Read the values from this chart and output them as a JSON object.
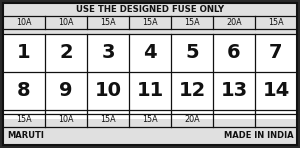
{
  "title": "USE THE DESIGNED FUSE ONLY",
  "top_fuses": [
    "10A",
    "10A",
    "15A",
    "15A",
    "15A",
    "20A",
    "15A"
  ],
  "row1_nums": [
    "1",
    "2",
    "3",
    "4",
    "5",
    "6",
    "7"
  ],
  "row2_nums": [
    "8",
    "9",
    "10",
    "11",
    "12",
    "13",
    "14"
  ],
  "bottom_fuses": [
    "15A",
    "10A",
    "15A",
    "15A",
    "20A",
    "",
    ""
  ],
  "bottom_left": "MARUTI",
  "bottom_right": "MADE IN INDIA",
  "outer_bg": "#2a2a2a",
  "inner_bg": "#ffffff",
  "header_bg": "#e0e0e0",
  "footer_bg": "#e0e0e0",
  "border_color": "#111111",
  "text_color": "#111111",
  "num_cols": 7,
  "figsize": [
    3.0,
    1.48
  ],
  "dpi": 100,
  "title_fontsize": 6.2,
  "fuse_fontsize": 5.8,
  "num_fontsize": 14,
  "footer_fontsize": 6.0
}
